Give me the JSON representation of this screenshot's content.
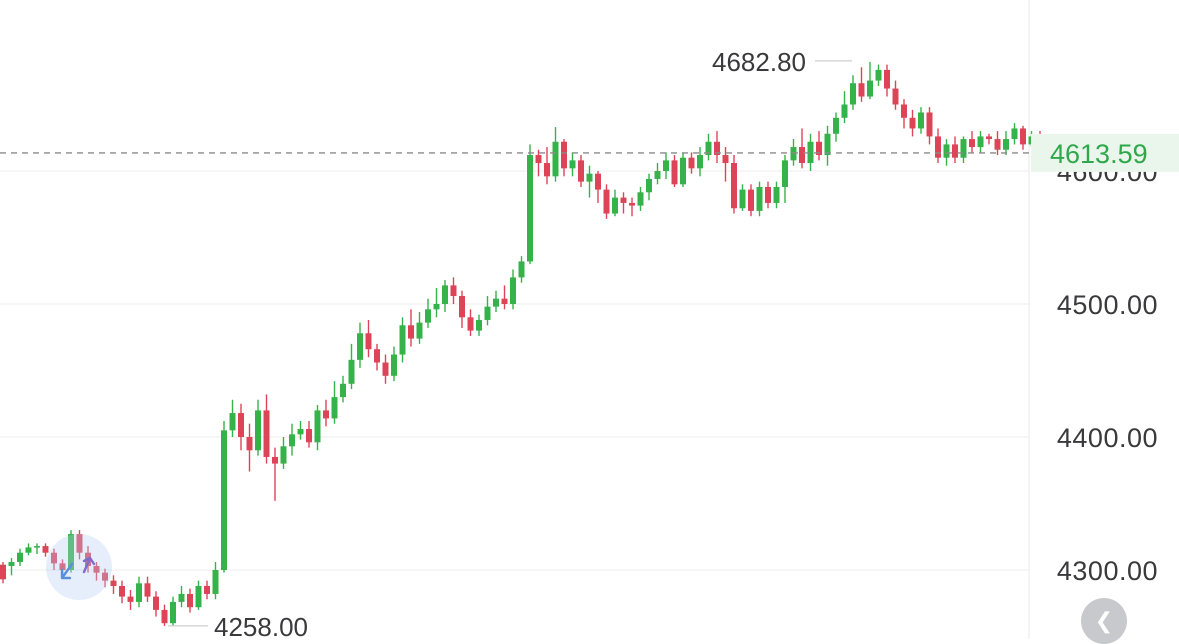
{
  "chart_data": {
    "type": "candlestick",
    "y_ticks": [
      {
        "value": 4600,
        "label": "4600.00"
      },
      {
        "value": 4500,
        "label": "4500.00"
      },
      {
        "value": 4400,
        "label": "4400.00"
      },
      {
        "value": 4300,
        "label": "4300.00"
      }
    ],
    "current_price": {
      "value": 4613.59,
      "label": "4613.59"
    },
    "high_marker": {
      "value": 4682.8,
      "label": "4682.80"
    },
    "low_marker": {
      "value": 4258.0,
      "label": "4258.00"
    },
    "colors": {
      "up": "#36b24a",
      "down": "#de4457",
      "current": "#2ea84a",
      "grid": "#ececec"
    },
    "candles": [
      [
        4304,
        4293,
        4306,
        4290
      ],
      [
        4303,
        4306,
        4309,
        4296
      ],
      [
        4306,
        4313,
        4316,
        4303
      ],
      [
        4313,
        4317,
        4320,
        4311
      ],
      [
        4317,
        4318,
        4320,
        4312
      ],
      [
        4318,
        4313,
        4320,
        4310
      ],
      [
        4313,
        4305,
        4316,
        4300
      ],
      [
        4305,
        4300,
        4308,
        4295
      ],
      [
        4300,
        4327,
        4330,
        4298
      ],
      [
        4327,
        4313,
        4330,
        4308
      ],
      [
        4313,
        4303,
        4318,
        4298
      ],
      [
        4303,
        4298,
        4306,
        4292
      ],
      [
        4298,
        4292,
        4301,
        4287
      ],
      [
        4292,
        4288,
        4296,
        4282
      ],
      [
        4288,
        4280,
        4292,
        4275
      ],
      [
        4280,
        4276,
        4285,
        4270
      ],
      [
        4276,
        4290,
        4295,
        4272
      ],
      [
        4290,
        4280,
        4295,
        4276
      ],
      [
        4280,
        4270,
        4284,
        4265
      ],
      [
        4270,
        4260,
        4274,
        4258
      ],
      [
        4260,
        4276,
        4280,
        4258
      ],
      [
        4276,
        4282,
        4288,
        4272
      ],
      [
        4282,
        4272,
        4286,
        4268
      ],
      [
        4272,
        4288,
        4292,
        4270
      ],
      [
        4288,
        4282,
        4292,
        4278
      ],
      [
        4282,
        4300,
        4306,
        4278
      ],
      [
        4300,
        4405,
        4412,
        4298
      ],
      [
        4405,
        4418,
        4428,
        4400
      ],
      [
        4418,
        4400,
        4425,
        4390
      ],
      [
        4400,
        4390,
        4410,
        4374
      ],
      [
        4390,
        4420,
        4428,
        4386
      ],
      [
        4420,
        4385,
        4432,
        4380
      ],
      [
        4385,
        4380,
        4392,
        4352
      ],
      [
        4380,
        4393,
        4400,
        4376
      ],
      [
        4393,
        4402,
        4410,
        4386
      ],
      [
        4402,
        4406,
        4412,
        4398
      ],
      [
        4406,
        4396,
        4412,
        4392
      ],
      [
        4396,
        4420,
        4424,
        4390
      ],
      [
        4420,
        4414,
        4428,
        4408
      ],
      [
        4414,
        4430,
        4442,
        4410
      ],
      [
        4430,
        4440,
        4446,
        4426
      ],
      [
        4440,
        4458,
        4470,
        4436
      ],
      [
        4458,
        4478,
        4486,
        4452
      ],
      [
        4478,
        4466,
        4488,
        4460
      ],
      [
        4466,
        4456,
        4470,
        4450
      ],
      [
        4456,
        4446,
        4462,
        4440
      ],
      [
        4446,
        4462,
        4468,
        4442
      ],
      [
        4462,
        4484,
        4490,
        4456
      ],
      [
        4484,
        4474,
        4496,
        4468
      ],
      [
        4474,
        4486,
        4494,
        4470
      ],
      [
        4486,
        4496,
        4504,
        4482
      ],
      [
        4496,
        4500,
        4512,
        4490
      ],
      [
        4500,
        4514,
        4518,
        4494
      ],
      [
        4514,
        4506,
        4520,
        4500
      ],
      [
        4506,
        4490,
        4510,
        4482
      ],
      [
        4490,
        4480,
        4496,
        4476
      ],
      [
        4480,
        4488,
        4492,
        4476
      ],
      [
        4488,
        4498,
        4506,
        4484
      ],
      [
        4498,
        4504,
        4510,
        4494
      ],
      [
        4504,
        4500,
        4514,
        4496
      ],
      [
        4500,
        4520,
        4526,
        4496
      ],
      [
        4520,
        4532,
        4536,
        4516
      ],
      [
        4532,
        4612,
        4620,
        4530
      ],
      [
        4612,
        4606,
        4616,
        4596
      ],
      [
        4606,
        4596,
        4618,
        4590
      ],
      [
        4596,
        4622,
        4633,
        4592
      ],
      [
        4622,
        4602,
        4624,
        4596
      ],
      [
        4602,
        4608,
        4614,
        4596
      ],
      [
        4608,
        4592,
        4612,
        4588
      ],
      [
        4592,
        4598,
        4604,
        4580
      ],
      [
        4598,
        4586,
        4600,
        4576
      ],
      [
        4586,
        4568,
        4590,
        4564
      ],
      [
        4568,
        4580,
        4586,
        4566
      ],
      [
        4580,
        4576,
        4584,
        4568
      ],
      [
        4576,
        4574,
        4580,
        4566
      ],
      [
        4574,
        4584,
        4588,
        4570
      ],
      [
        4584,
        4594,
        4598,
        4578
      ],
      [
        4594,
        4600,
        4606,
        4590
      ],
      [
        4600,
        4608,
        4614,
        4594
      ],
      [
        4608,
        4590,
        4612,
        4588
      ],
      [
        4590,
        4610,
        4614,
        4588
      ],
      [
        4610,
        4602,
        4614,
        4598
      ],
      [
        4602,
        4612,
        4618,
        4596
      ],
      [
        4612,
        4622,
        4628,
        4608
      ],
      [
        4622,
        4612,
        4630,
        4606
      ],
      [
        4612,
        4606,
        4618,
        4592
      ],
      [
        4606,
        4572,
        4612,
        4568
      ],
      [
        4572,
        4586,
        4590,
        4570
      ],
      [
        4586,
        4570,
        4590,
        4566
      ],
      [
        4570,
        4588,
        4592,
        4566
      ],
      [
        4588,
        4576,
        4592,
        4572
      ],
      [
        4576,
        4588,
        4592,
        4572
      ],
      [
        4588,
        4608,
        4612,
        4576
      ],
      [
        4608,
        4618,
        4624,
        4604
      ],
      [
        4618,
        4606,
        4632,
        4602
      ],
      [
        4606,
        4622,
        4628,
        4600
      ],
      [
        4622,
        4612,
        4630,
        4608
      ],
      [
        4612,
        4628,
        4634,
        4604
      ],
      [
        4628,
        4640,
        4644,
        4622
      ],
      [
        4640,
        4650,
        4660,
        4636
      ],
      [
        4650,
        4666,
        4672,
        4646
      ],
      [
        4666,
        4656,
        4678,
        4652
      ],
      [
        4656,
        4668,
        4682,
        4654
      ],
      [
        4668,
        4676,
        4680,
        4664
      ],
      [
        4676,
        4662,
        4680,
        4656
      ],
      [
        4662,
        4650,
        4668,
        4646
      ],
      [
        4650,
        4640,
        4654,
        4632
      ],
      [
        4640,
        4632,
        4646,
        4626
      ],
      [
        4632,
        4644,
        4648,
        4628
      ],
      [
        4644,
        4626,
        4648,
        4620
      ],
      [
        4626,
        4610,
        4632,
        4606
      ],
      [
        4610,
        4620,
        4624,
        4604
      ],
      [
        4620,
        4610,
        4626,
        4606
      ],
      [
        4610,
        4624,
        4626,
        4606
      ],
      [
        4624,
        4618,
        4630,
        4614
      ],
      [
        4618,
        4626,
        4630,
        4614
      ],
      [
        4626,
        4624,
        4628,
        4620
      ],
      [
        4624,
        4616,
        4630,
        4612
      ],
      [
        4616,
        4624,
        4630,
        4612
      ],
      [
        4624,
        4632,
        4636,
        4620
      ],
      [
        4632,
        4620,
        4634,
        4616
      ],
      [
        4620,
        4626,
        4630,
        4618
      ],
      [
        4626,
        4614,
        4630,
        4610
      ],
      [
        4614,
        4614,
        4618,
        4610
      ]
    ]
  }
}
